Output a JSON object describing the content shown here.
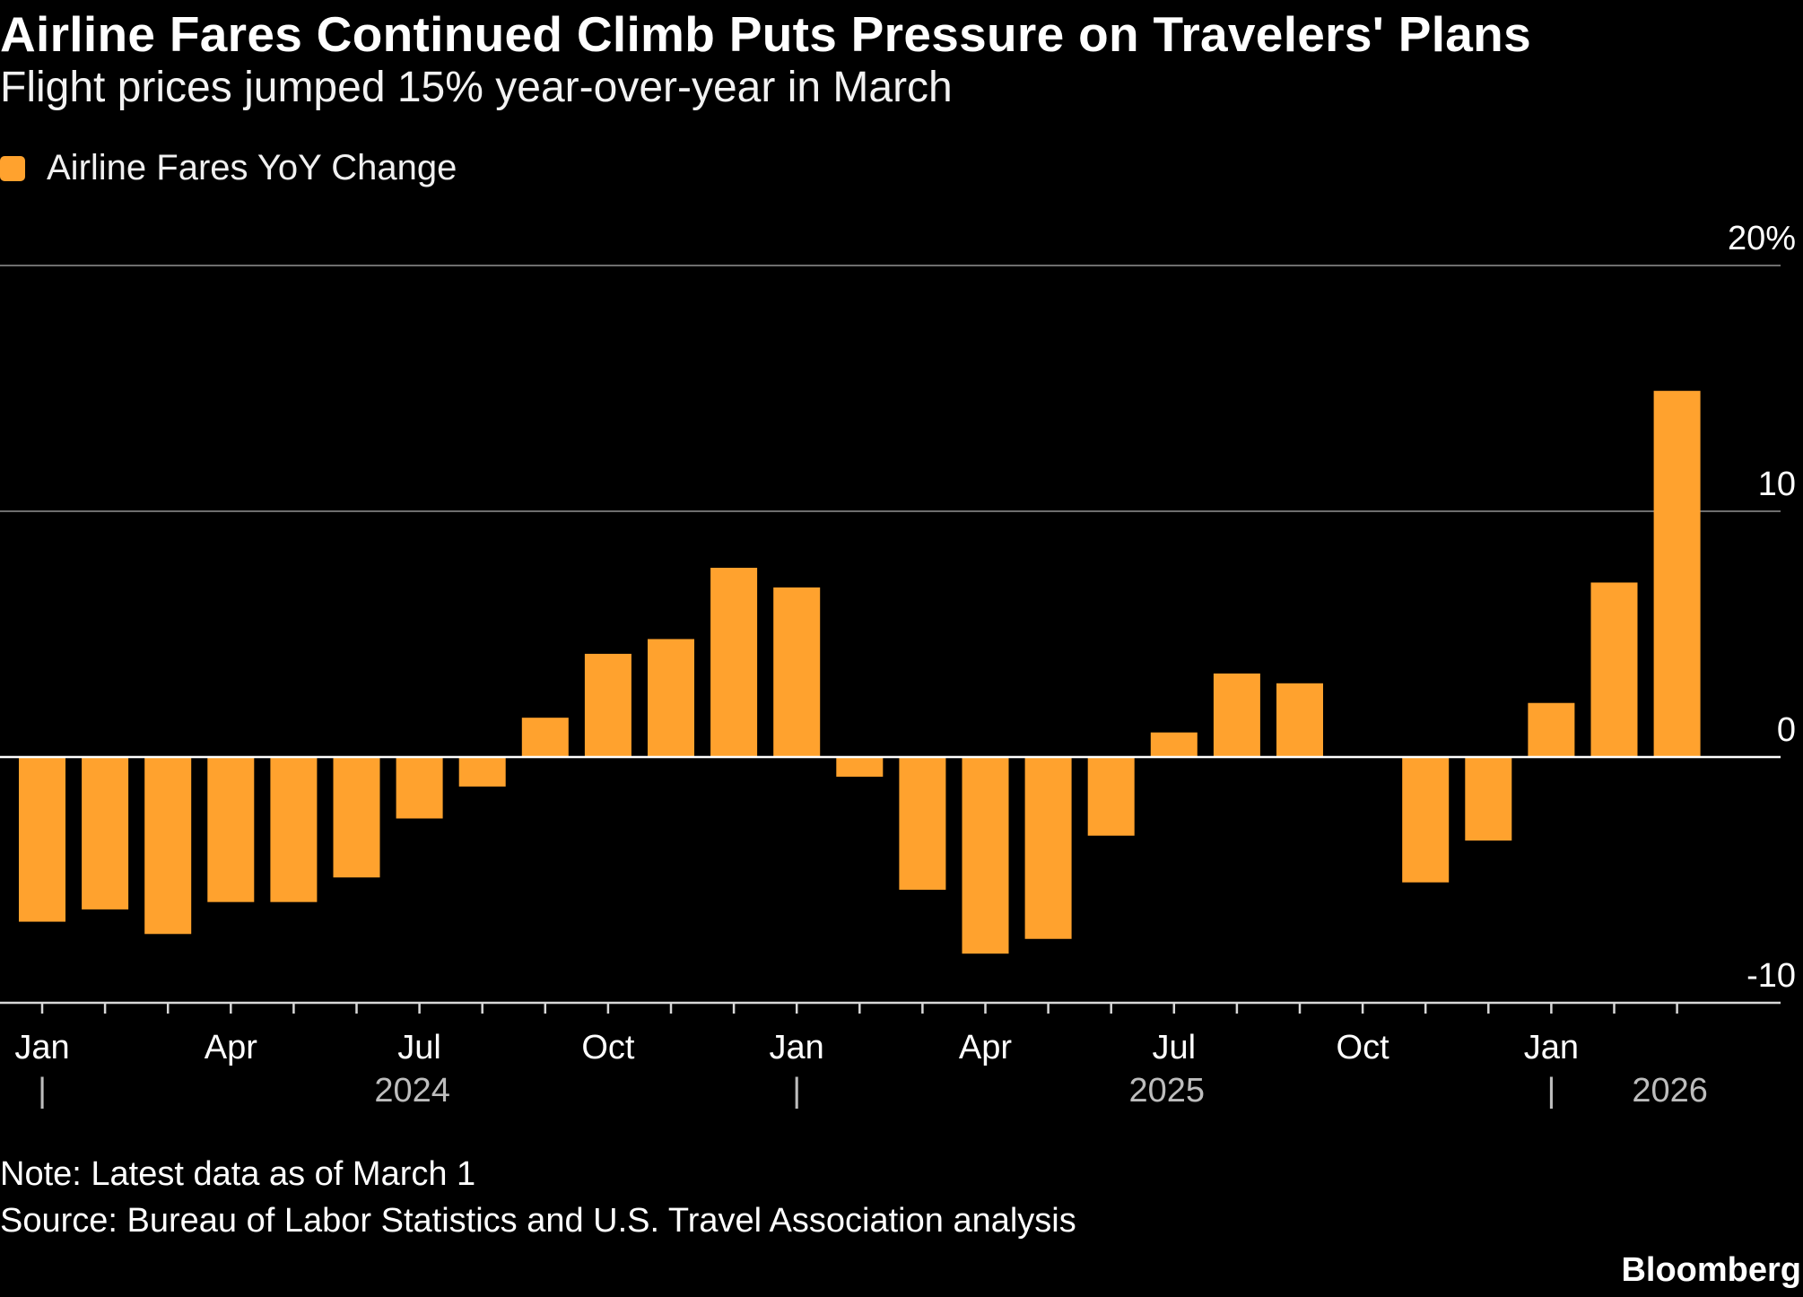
{
  "header": {
    "title": "Airline Fares Continued Climb Puts Pressure on Travelers' Plans",
    "subtitle": "Flight prices jumped 15% year-over-year in March"
  },
  "footer": {
    "note": "Note: Latest data as of March 1",
    "source": "Source: Bureau of Labor Statistics and U.S. Travel Association analysis",
    "brand": "Bloomberg"
  },
  "colors": {
    "background": "#000000",
    "bar": "#ffa22e",
    "grid": "#6e6e6e",
    "text": "#ffffff",
    "muted": "#bdbdbd"
  },
  "chart_data": {
    "type": "bar",
    "legend": {
      "label": "Airline Fares YoY Change",
      "position": "top-left"
    },
    "ylim": [
      -10,
      20
    ],
    "yticks": [
      {
        "value": 20,
        "label": "20%"
      },
      {
        "value": 10,
        "label": "10"
      },
      {
        "value": 0,
        "label": "0"
      },
      {
        "value": -10,
        "label": "-10"
      }
    ],
    "grid": true,
    "series": [
      {
        "name": "Airline Fares YoY Change",
        "data": [
          {
            "month": "2024-01",
            "value": -6.7
          },
          {
            "month": "2024-02",
            "value": -6.2
          },
          {
            "month": "2024-03",
            "value": -7.2
          },
          {
            "month": "2024-04",
            "value": -5.9
          },
          {
            "month": "2024-05",
            "value": -5.9
          },
          {
            "month": "2024-06",
            "value": -4.9
          },
          {
            "month": "2024-07",
            "value": -2.5
          },
          {
            "month": "2024-08",
            "value": -1.2
          },
          {
            "month": "2024-09",
            "value": 1.6
          },
          {
            "month": "2024-10",
            "value": 4.2
          },
          {
            "month": "2024-11",
            "value": 4.8
          },
          {
            "month": "2024-12",
            "value": 7.7
          },
          {
            "month": "2025-01",
            "value": 6.9
          },
          {
            "month": "2025-02",
            "value": -0.8
          },
          {
            "month": "2025-03",
            "value": -5.4
          },
          {
            "month": "2025-04",
            "value": -8.0
          },
          {
            "month": "2025-05",
            "value": -7.4
          },
          {
            "month": "2025-06",
            "value": -3.2
          },
          {
            "month": "2025-07",
            "value": 1.0
          },
          {
            "month": "2025-08",
            "value": 3.4
          },
          {
            "month": "2025-09",
            "value": 3.0
          },
          {
            "month": "2025-10",
            "value": null
          },
          {
            "month": "2025-11",
            "value": -5.1
          },
          {
            "month": "2025-12",
            "value": -3.4
          },
          {
            "month": "2026-01",
            "value": 2.2
          },
          {
            "month": "2026-02",
            "value": 7.1
          },
          {
            "month": "2026-03",
            "value": 14.9
          }
        ]
      }
    ],
    "x_tick_labels": [
      {
        "month": "2024-01",
        "label": "Jan"
      },
      {
        "month": "2024-04",
        "label": "Apr"
      },
      {
        "month": "2024-07",
        "label": "Jul"
      },
      {
        "month": "2024-10",
        "label": "Oct"
      },
      {
        "month": "2025-01",
        "label": "Jan"
      },
      {
        "month": "2025-04",
        "label": "Apr"
      },
      {
        "month": "2025-07",
        "label": "Jul"
      },
      {
        "month": "2025-10",
        "label": "Oct"
      },
      {
        "month": "2026-01",
        "label": "Jan"
      }
    ],
    "year_labels": [
      {
        "month": "2024-07",
        "label": "2024"
      },
      {
        "month": "2025-07",
        "label": "2025"
      },
      {
        "month": "2026-03",
        "label": "2026"
      }
    ],
    "year_dividers": [
      "2024-01",
      "2025-01",
      "2026-01"
    ],
    "year_divider_label": "|"
  }
}
